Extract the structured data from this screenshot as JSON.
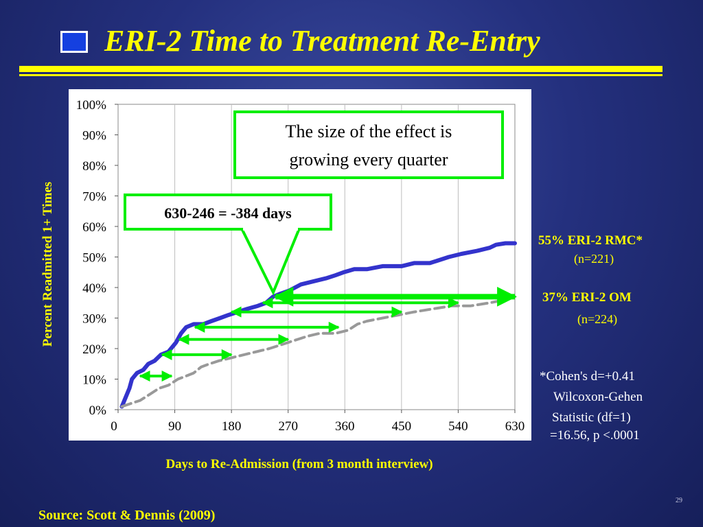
{
  "slide": {
    "title": "ERI-2 Time to Treatment Re-Entry",
    "source": "Source: Scott & Dennis (2009)",
    "page_number": "29"
  },
  "annotations": {
    "callout_effect": [
      "The size of the effect is",
      "growing every quarter"
    ],
    "callout_diff": "630-246 = -384 days",
    "series1_label": "55% ERI-2 RMC*",
    "series1_n": "(n=221)",
    "series2_label": "37% ERI-2 OM",
    "series2_n": "(n=224)",
    "stats": [
      "*Cohen's d=+0.41",
      "Wilcoxon-Gehen",
      "Statistic (df=1)",
      "=16.56, p <.0001"
    ]
  },
  "colors": {
    "rmc": "#3333cc",
    "om": "#999999",
    "arrows": "#00ee00",
    "accent": "#ffff00"
  },
  "chart_data": {
    "type": "line",
    "xlabel": "Days to Re-Admission (from 3 month interview)",
    "ylabel": "Percent Readmitted 1+ Times",
    "xlim": [
      0,
      630
    ],
    "ylim": [
      0,
      100
    ],
    "xticks": [
      "0",
      "90",
      "180",
      "270",
      "360",
      "450",
      "540",
      "630"
    ],
    "yticks": [
      "0%",
      "10%",
      "20%",
      "30%",
      "40%",
      "50%",
      "60%",
      "70%",
      "80%",
      "90%",
      "100%"
    ],
    "grid": "vertical",
    "series": [
      {
        "name": "ERI-2 RMC",
        "style": "solid",
        "points": [
          [
            6,
            1
          ],
          [
            12,
            4
          ],
          [
            18,
            7
          ],
          [
            22,
            10
          ],
          [
            30,
            12
          ],
          [
            40,
            13
          ],
          [
            48,
            15
          ],
          [
            58,
            16
          ],
          [
            68,
            18
          ],
          [
            80,
            19
          ],
          [
            92,
            22
          ],
          [
            100,
            25
          ],
          [
            108,
            27
          ],
          [
            120,
            28
          ],
          [
            135,
            28
          ],
          [
            148,
            29
          ],
          [
            162,
            30
          ],
          [
            175,
            31
          ],
          [
            190,
            32
          ],
          [
            205,
            33
          ],
          [
            222,
            34
          ],
          [
            235,
            35
          ],
          [
            246,
            37
          ],
          [
            258,
            38
          ],
          [
            272,
            39
          ],
          [
            290,
            41
          ],
          [
            310,
            42
          ],
          [
            330,
            43
          ],
          [
            345,
            44
          ],
          [
            358,
            45
          ],
          [
            375,
            46
          ],
          [
            395,
            46
          ],
          [
            420,
            47
          ],
          [
            450,
            47
          ],
          [
            470,
            48
          ],
          [
            495,
            48
          ],
          [
            510,
            49
          ],
          [
            525,
            50
          ],
          [
            545,
            51
          ],
          [
            570,
            52
          ],
          [
            590,
            53
          ],
          [
            600,
            54
          ],
          [
            615,
            54.5
          ],
          [
            630,
            54.5
          ]
        ]
      },
      {
        "name": "ERI-2 OM",
        "style": "dashed",
        "points": [
          [
            6,
            1
          ],
          [
            20,
            2
          ],
          [
            35,
            3
          ],
          [
            50,
            5
          ],
          [
            65,
            7
          ],
          [
            80,
            8
          ],
          [
            95,
            10
          ],
          [
            108,
            11
          ],
          [
            120,
            12
          ],
          [
            132,
            14
          ],
          [
            145,
            15
          ],
          [
            160,
            16
          ],
          [
            180,
            17
          ],
          [
            200,
            18
          ],
          [
            220,
            19
          ],
          [
            240,
            20
          ],
          [
            255,
            21
          ],
          [
            270,
            22
          ],
          [
            285,
            23
          ],
          [
            300,
            24
          ],
          [
            320,
            25
          ],
          [
            345,
            25
          ],
          [
            365,
            26
          ],
          [
            380,
            28
          ],
          [
            395,
            29
          ],
          [
            420,
            30
          ],
          [
            445,
            31
          ],
          [
            470,
            32
          ],
          [
            500,
            33
          ],
          [
            530,
            34
          ],
          [
            560,
            34
          ],
          [
            590,
            35
          ],
          [
            615,
            36
          ],
          [
            630,
            37
          ]
        ]
      }
    ],
    "arrows": [
      {
        "x1": 35,
        "x2": 85,
        "y": 11
      },
      {
        "x1": 70,
        "x2": 180,
        "y": 18
      },
      {
        "x1": 97,
        "x2": 270,
        "y": 23
      },
      {
        "x1": 122,
        "x2": 350,
        "y": 27
      },
      {
        "x1": 180,
        "x2": 450,
        "y": 32
      },
      {
        "x1": 230,
        "x2": 540,
        "y": 35
      },
      {
        "x1": 250,
        "x2": 630,
        "y": 37
      }
    ]
  }
}
